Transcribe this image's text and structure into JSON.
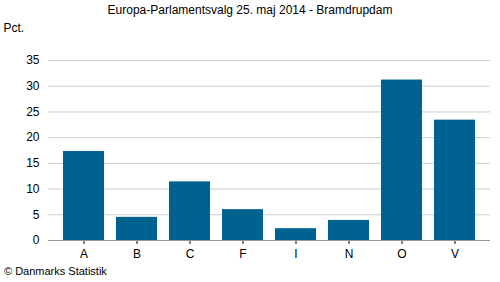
{
  "chart_data": {
    "type": "bar",
    "title": "Europa-Parlamentsvalg 25. maj 2014 - Bramdrupdam",
    "ylabel": "Pct.",
    "caption": "© Danmarks Statistik",
    "categories": [
      "A",
      "B",
      "C",
      "F",
      "I",
      "N",
      "O",
      "V"
    ],
    "values": [
      17.3,
      4.5,
      11.4,
      6.0,
      2.3,
      3.9,
      31.2,
      23.4
    ],
    "color": "#00628f",
    "ylim": [
      0,
      35
    ],
    "yticks": [
      0,
      5,
      10,
      15,
      20,
      25,
      30,
      35
    ],
    "grid": true
  }
}
